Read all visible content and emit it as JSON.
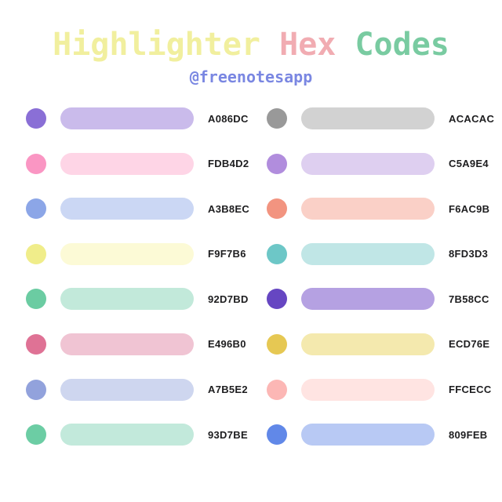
{
  "header": {
    "title_parts": [
      {
        "text": "Highlighter",
        "color": "#F1EF9E"
      },
      {
        "text": "Hex",
        "color": "#F1ACB2"
      },
      {
        "text": "Codes",
        "color": "#79CBA1"
      }
    ],
    "subtitle": {
      "text": "@freenotesapp",
      "color": "#7A87E2"
    }
  },
  "palette": {
    "columns": [
      {
        "name": "left",
        "swatches": [
          {
            "code": "A086DC",
            "dot": "#8A6FD6",
            "bar": "#CABBEB"
          },
          {
            "code": "FDB4D2",
            "dot": "#FA96C3",
            "bar": "#FED5E6"
          },
          {
            "code": "A3B8EC",
            "dot": "#8CA6E7",
            "bar": "#CBD7F4"
          },
          {
            "code": "F9F7B6",
            "dot": "#F0ED8A",
            "bar": "#FCFAD6"
          },
          {
            "code": "92D7BD",
            "dot": "#6BCCA2",
            "bar": "#C2E9DA"
          },
          {
            "code": "E496B0",
            "dot": "#DF7295",
            "bar": "#F0C4D3"
          },
          {
            "code": "A7B5E2",
            "dot": "#92A2DC",
            "bar": "#CED6EF"
          },
          {
            "code": "93D7BE",
            "dot": "#6CCDA4",
            "bar": "#C2E9DB"
          }
        ]
      },
      {
        "name": "right",
        "swatches": [
          {
            "code": "ACACAC",
            "dot": "#999999",
            "bar": "#D2D2D2"
          },
          {
            "code": "C5A9E4",
            "dot": "#B18DDD",
            "bar": "#DECFF0"
          },
          {
            "code": "F6AC9B",
            "dot": "#F29480",
            "bar": "#FAD0C7"
          },
          {
            "code": "8FD3D3",
            "dot": "#6DC7C7",
            "bar": "#C0E6E6"
          },
          {
            "code": "7B58CC",
            "dot": "#6646C2",
            "bar": "#B5A1E2"
          },
          {
            "code": "ECD76E",
            "dot": "#E6C853",
            "bar": "#F4E9AE"
          },
          {
            "code": "FFCECC",
            "dot": "#FCB7B5",
            "bar": "#FFE4E2"
          },
          {
            "code": "809FEB",
            "dot": "#6188E8",
            "bar": "#B8C9F4"
          }
        ]
      }
    ]
  },
  "style": {
    "background": "#FFFFFF",
    "code_text_color": "#1D1D1F"
  }
}
